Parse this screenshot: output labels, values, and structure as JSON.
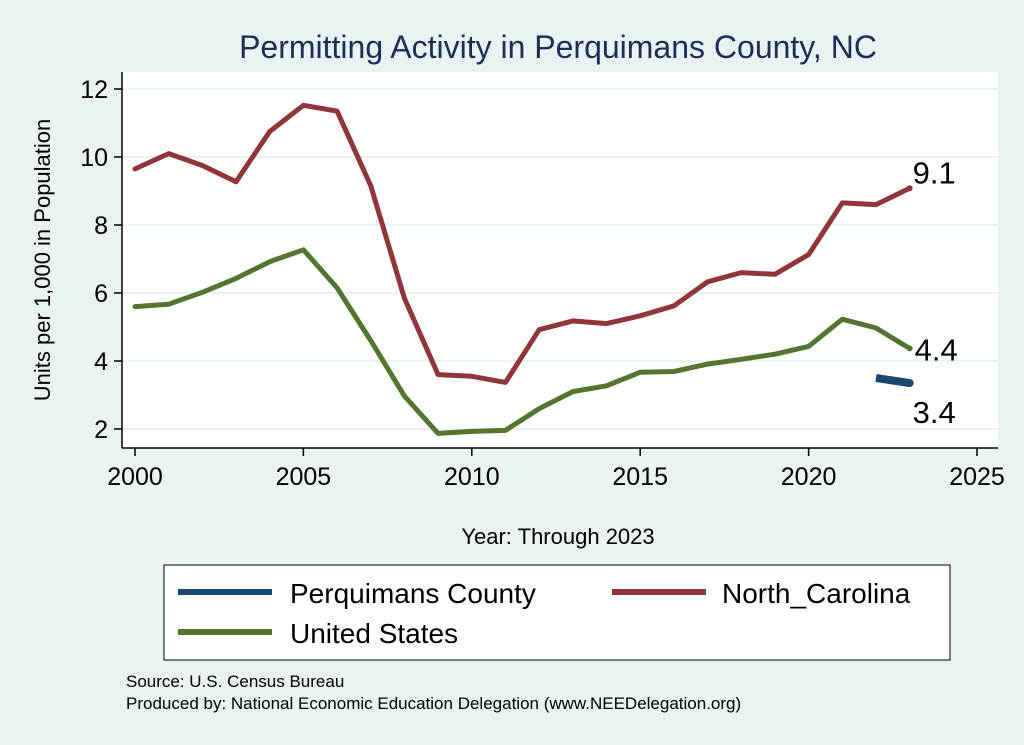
{
  "colors": {
    "background": "#eaf2f3",
    "plot_background": "#ffffff",
    "title": "#1a2f55",
    "perquimans": "#1a476f",
    "north_carolina": "#90353b",
    "united_states": "#55752f"
  },
  "chart_data": {
    "type": "line",
    "title": "Permitting Activity in Perquimans County, NC",
    "xlabel": "Year: Through 2023",
    "ylabel": "Units per 1,000 in Population",
    "xlim": [
      2000,
      2025
    ],
    "ylim": [
      1.5,
      12.5
    ],
    "xticks": [
      2000,
      2005,
      2010,
      2015,
      2020,
      2025
    ],
    "yticks": [
      2,
      4,
      6,
      8,
      10,
      12
    ],
    "grid": "horizontal",
    "legend_position": "bottom",
    "series": [
      {
        "name": "Perquimans County",
        "color": "#1a476f",
        "x": [
          2022,
          2023
        ],
        "y": [
          3.5,
          3.35
        ],
        "end_label": "3.4"
      },
      {
        "name": "North_Carolina",
        "color": "#90353b",
        "x": [
          2000,
          2001,
          2002,
          2003,
          2004,
          2005,
          2006,
          2007,
          2008,
          2009,
          2010,
          2011,
          2012,
          2013,
          2014,
          2015,
          2016,
          2017,
          2018,
          2019,
          2020,
          2021,
          2022,
          2023
        ],
        "y": [
          9.65,
          10.1,
          9.75,
          9.27,
          10.75,
          11.52,
          11.35,
          9.15,
          5.85,
          3.6,
          3.55,
          3.37,
          4.92,
          5.18,
          5.1,
          5.33,
          5.62,
          6.33,
          6.6,
          6.55,
          7.13,
          8.65,
          8.6,
          9.08
        ],
        "end_label": "9.1"
      },
      {
        "name": "United States",
        "color": "#55752f",
        "x": [
          2000,
          2001,
          2002,
          2003,
          2004,
          2005,
          2006,
          2007,
          2008,
          2009,
          2010,
          2011,
          2012,
          2013,
          2014,
          2015,
          2016,
          2017,
          2018,
          2019,
          2020,
          2021,
          2022,
          2023
        ],
        "y": [
          5.6,
          5.67,
          6.02,
          6.43,
          6.92,
          7.27,
          6.15,
          4.6,
          2.97,
          1.87,
          1.93,
          1.96,
          2.6,
          3.1,
          3.27,
          3.67,
          3.69,
          3.91,
          4.05,
          4.2,
          4.43,
          5.23,
          4.97,
          4.37
        ],
        "end_label": "4.4"
      }
    ],
    "legend": [
      {
        "label": "Perquimans County"
      },
      {
        "label": "North_Carolina"
      },
      {
        "label": "United States"
      }
    ]
  },
  "footer": {
    "source": "Source: U.S. Census Bureau",
    "produced_by": "Produced by: National Economic Education Delegation (www.NEEDelegation.org)"
  }
}
